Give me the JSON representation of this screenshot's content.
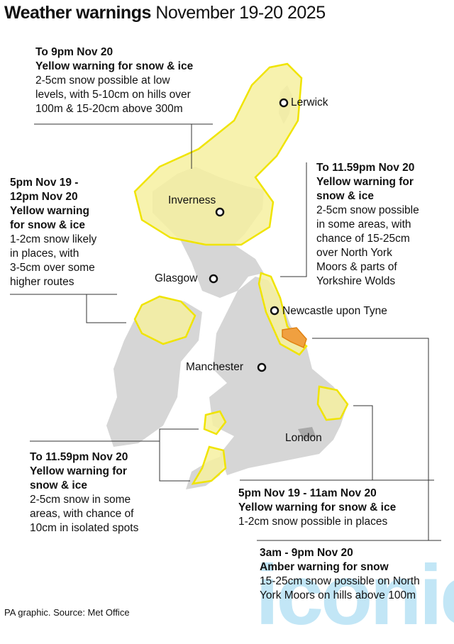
{
  "title": {
    "bold": "Weather warnings",
    "rest": "November 19-20 2025"
  },
  "colors": {
    "yellow_fill": "#f6f0a0",
    "yellow_stroke": "#f0e400",
    "amber_fill": "#f0a040",
    "land": "#d6d6d6"
  },
  "cities": [
    "Lerwick",
    "Inverness",
    "Glasgow",
    "Newcastle upon Tyne",
    "Manchester",
    "London"
  ],
  "warnings": [
    {
      "time": "To 9pm Nov 20",
      "level": "Yellow warning for snow & ice",
      "lines": [
        "2-5cm snow possible at low",
        "levels, with 5-10cm on hills over",
        "100m & 15-20cm above 300m"
      ]
    },
    {
      "time": "5pm Nov 19 -",
      "time2": "12pm Nov 20",
      "level": "Yellow warning",
      "level2": "for snow & ice",
      "lines": [
        "1-2cm snow likely",
        "in places, with",
        "3-5cm over some",
        "higher routes"
      ]
    },
    {
      "time": "To 11.59pm Nov 20",
      "level": "Yellow warning for",
      "level2": "snow & ice",
      "lines": [
        "2-5cm snow possible",
        "in some areas, with",
        "chance of 15-25cm",
        "over North York",
        "Moors & parts of",
        "Yorkshire Wolds"
      ]
    },
    {
      "time": "To 11.59pm Nov 20",
      "level": "Yellow warning for",
      "level2": "snow & ice",
      "lines": [
        "2-5cm snow in some",
        "areas, with chance of",
        "10cm in isolated spots"
      ]
    },
    {
      "time": "5pm Nov 19 - 11am Nov 20",
      "level": "Yellow warning for snow & ice",
      "lines": [
        "1-2cm snow possible in places"
      ]
    },
    {
      "time": "3am - 9pm Nov 20",
      "level": "Amber warning for snow",
      "lines": [
        "15-25cm snow possible on North",
        "York Moors on hills above 100m"
      ]
    }
  ],
  "source": "PA graphic. Source: Met Office",
  "watermark": "iconic"
}
